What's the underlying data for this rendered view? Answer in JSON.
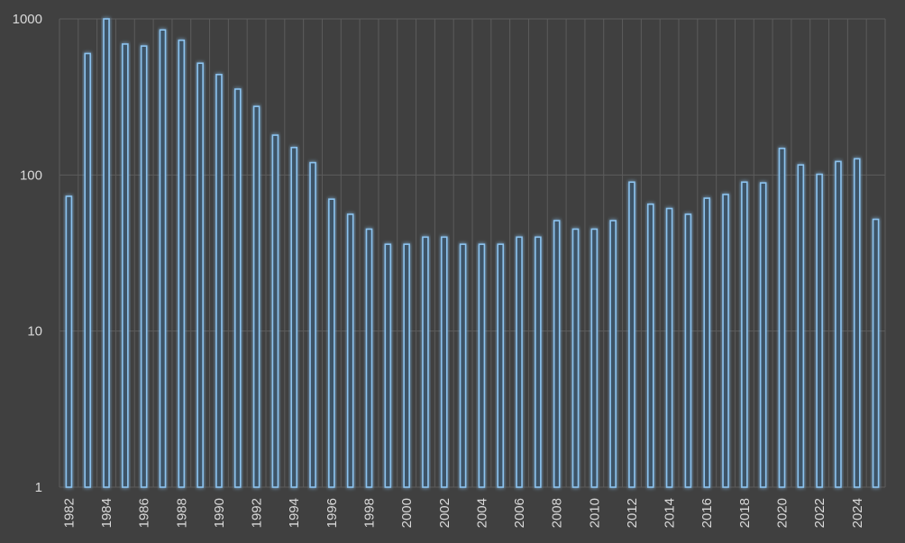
{
  "chart_data": {
    "type": "bar",
    "title": "",
    "xlabel": "",
    "ylabel": "",
    "y_scale": "log",
    "ylim": [
      1,
      1000
    ],
    "y_ticks": [
      "1",
      "10",
      "100",
      "1000"
    ],
    "grid": true,
    "legend": "none",
    "bar_color": "#5b9bd5",
    "categories": [
      1982,
      1983,
      1984,
      1985,
      1986,
      1987,
      1988,
      1989,
      1990,
      1991,
      1992,
      1993,
      1994,
      1995,
      1996,
      1997,
      1998,
      1999,
      2000,
      2001,
      2002,
      2003,
      2004,
      2005,
      2006,
      2007,
      2008,
      2009,
      2010,
      2011,
      2012,
      2013,
      2014,
      2015,
      2016,
      2017,
      2018,
      2019,
      2020,
      2021,
      2022,
      2023,
      2024,
      2025
    ],
    "x_tick_labels": [
      "1982",
      "1984",
      "1986",
      "1988",
      "1990",
      "1992",
      "1994",
      "1996",
      "1998",
      "2000",
      "2002",
      "2004",
      "2006",
      "2008",
      "2010",
      "2012",
      "2014",
      "2016",
      "2018",
      "2020",
      "2022",
      "2024"
    ],
    "values": [
      73,
      600,
      1000,
      690,
      670,
      850,
      730,
      520,
      440,
      355,
      275,
      180,
      150,
      120,
      70,
      56,
      45,
      36,
      36,
      40,
      40,
      36,
      36,
      36,
      40,
      40,
      51,
      45,
      45,
      51,
      90,
      65,
      61,
      56,
      71,
      75,
      90,
      89,
      148,
      116,
      101,
      122,
      127,
      52
    ]
  }
}
